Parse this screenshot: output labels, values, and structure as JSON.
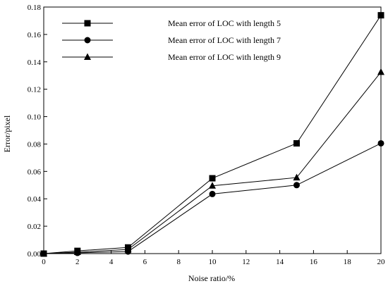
{
  "chart_data": {
    "type": "line",
    "title": "",
    "xlabel": "Noise ratio/%",
    "ylabel": "Error/pixel",
    "xlim": [
      0,
      20
    ],
    "ylim": [
      0,
      0.18
    ],
    "xticks": [
      "0",
      "2",
      "4",
      "6",
      "8",
      "10",
      "12",
      "14",
      "16",
      "18",
      "20"
    ],
    "yticks": [
      "0.00",
      "0.02",
      "0.04",
      "0.06",
      "0.08",
      "0.10",
      "0.12",
      "0.14",
      "0.16",
      "0.18"
    ],
    "grid": false,
    "legend_position": "top-center",
    "x": [
      0,
      2,
      5,
      10,
      15,
      20
    ],
    "series": [
      {
        "name": "Mean error of LOC with length 5",
        "marker": "square",
        "values": [
          0,
          0.002,
          0.0045,
          0.055,
          0.0805,
          0.174
        ]
      },
      {
        "name": "Mean error of LOC with length 7",
        "marker": "circle",
        "values": [
          0,
          0.0005,
          0.0015,
          0.0435,
          0.05,
          0.0805
        ]
      },
      {
        "name": "Mean error of LOC with length 9",
        "marker": "triangle",
        "values": [
          0,
          0.001,
          0.003,
          0.0495,
          0.0555,
          0.1325
        ]
      }
    ],
    "colors": {
      "line": "#000000",
      "axis": "#000000"
    }
  }
}
